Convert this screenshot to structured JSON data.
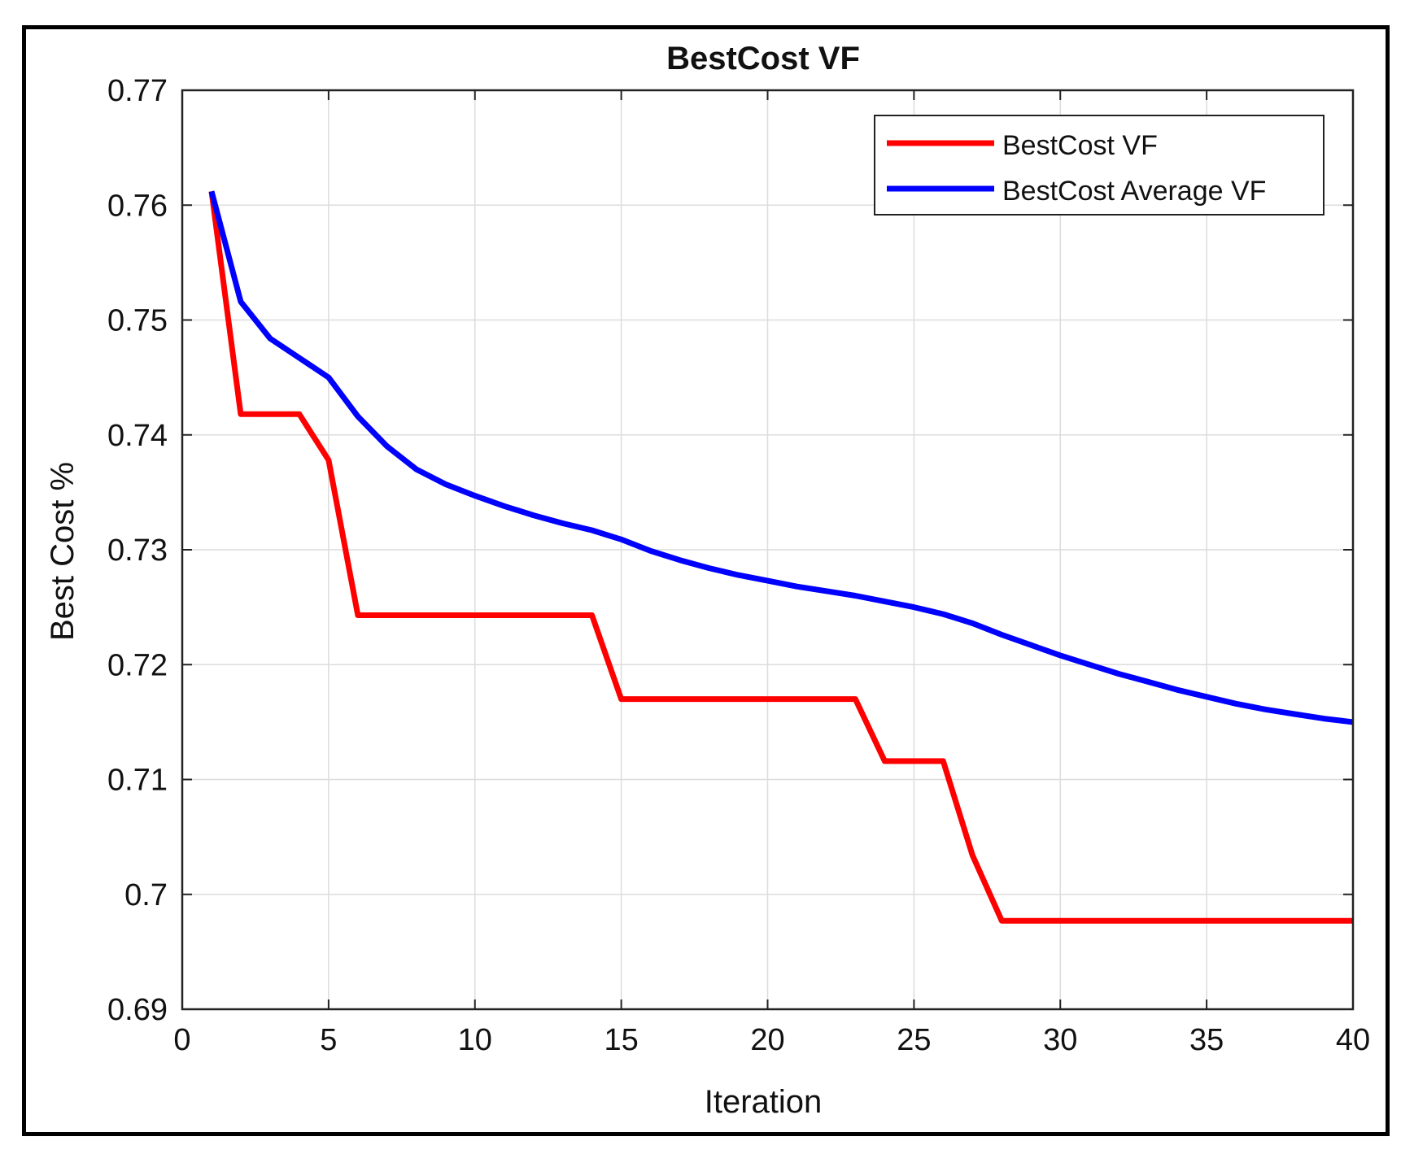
{
  "chart_data": {
    "type": "line",
    "title": "BestCost VF",
    "xlabel": "Iteration",
    "ylabel": "Best Cost %",
    "xlim": [
      0,
      40
    ],
    "ylim": [
      0.69,
      0.77
    ],
    "grid": true,
    "legend_position": "top-right",
    "x_ticks": [
      0,
      5,
      10,
      15,
      20,
      25,
      30,
      35,
      40
    ],
    "x_tick_labels": [
      "0",
      "5",
      "10",
      "15",
      "20",
      "25",
      "30",
      "35",
      "40"
    ],
    "y_ticks": [
      0.69,
      0.7,
      0.71,
      0.72,
      0.73,
      0.74,
      0.75,
      0.76,
      0.77
    ],
    "y_tick_labels": [
      "0.69",
      "0.7",
      "0.71",
      "0.72",
      "0.73",
      "0.74",
      "0.75",
      "0.76",
      "0.77"
    ],
    "series": [
      {
        "name": "BestCost VF",
        "color": "#ff0000",
        "x": [
          1,
          2,
          3,
          4,
          5,
          6,
          7,
          8,
          9,
          10,
          11,
          12,
          13,
          14,
          15,
          16,
          17,
          18,
          19,
          20,
          21,
          22,
          23,
          24,
          25,
          26,
          27,
          28,
          29,
          30,
          31,
          32,
          33,
          34,
          35,
          36,
          37,
          38,
          39,
          40
        ],
        "values": [
          0.7612,
          0.7418,
          0.7418,
          0.7418,
          0.7378,
          0.7243,
          0.7243,
          0.7243,
          0.7243,
          0.7243,
          0.7243,
          0.7243,
          0.7243,
          0.7243,
          0.717,
          0.717,
          0.717,
          0.717,
          0.717,
          0.717,
          0.717,
          0.717,
          0.717,
          0.7116,
          0.7116,
          0.7116,
          0.7034,
          0.6977,
          0.6977,
          0.6977,
          0.6977,
          0.6977,
          0.6977,
          0.6977,
          0.6977,
          0.6977,
          0.6977,
          0.6977,
          0.6977,
          0.6977
        ]
      },
      {
        "name": "BestCost Average VF",
        "color": "#0000ff",
        "x": [
          1,
          2,
          3,
          4,
          5,
          6,
          7,
          8,
          9,
          10,
          11,
          12,
          13,
          14,
          15,
          16,
          17,
          18,
          19,
          20,
          21,
          22,
          23,
          24,
          25,
          26,
          27,
          28,
          29,
          30,
          31,
          32,
          33,
          34,
          35,
          36,
          37,
          38,
          39,
          40
        ],
        "values": [
          0.7612,
          0.7516,
          0.7484,
          0.7467,
          0.745,
          0.7416,
          0.739,
          0.737,
          0.7357,
          0.7347,
          0.7338,
          0.733,
          0.7323,
          0.7317,
          0.7309,
          0.7299,
          0.7291,
          0.7284,
          0.7278,
          0.7273,
          0.7268,
          0.7264,
          0.726,
          0.7255,
          0.725,
          0.7244,
          0.7236,
          0.7226,
          0.7217,
          0.7208,
          0.72,
          0.7192,
          0.7185,
          0.7178,
          0.7172,
          0.7166,
          0.7161,
          0.7157,
          0.7153,
          0.715
        ]
      }
    ]
  }
}
